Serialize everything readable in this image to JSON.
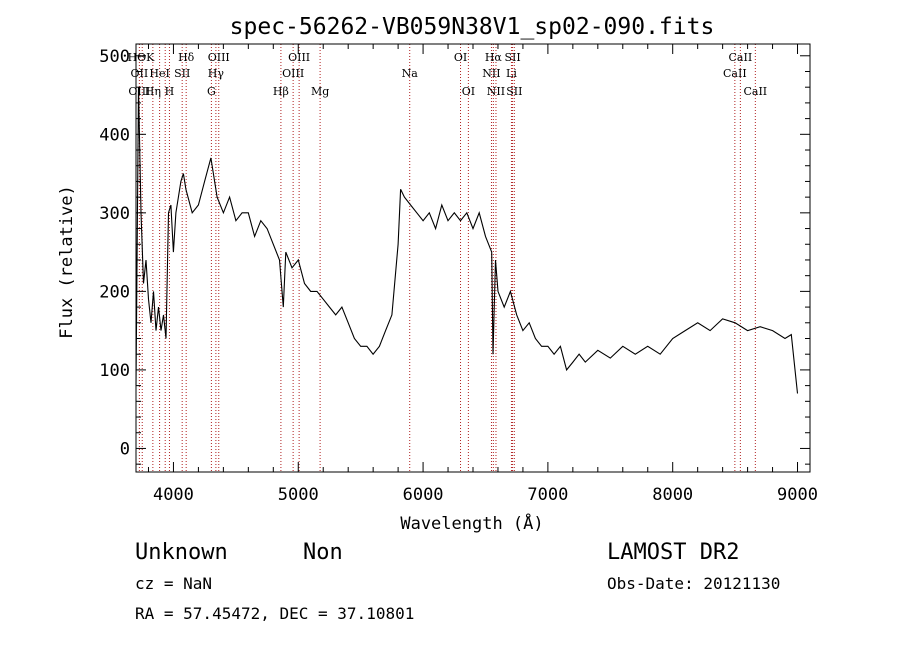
{
  "chart_data": {
    "type": "line",
    "title": "spec-56262-VB059N38V1_sp02-090.fits",
    "xlabel": "Wavelength (Å)",
    "ylabel": "Flux (relative)",
    "xlim": [
      3700,
      9100
    ],
    "ylim": [
      -30,
      515
    ],
    "x_ticks": [
      4000,
      5000,
      6000,
      7000,
      8000,
      9000
    ],
    "y_ticks": [
      0,
      100,
      200,
      300,
      400,
      500
    ],
    "grid": false,
    "series": [
      {
        "x": [
          3700,
          3720,
          3740,
          3760,
          3780,
          3800,
          3820,
          3840,
          3860,
          3880,
          3900,
          3920,
          3940,
          3960,
          3980,
          4000,
          4020,
          4040,
          4060,
          4080,
          4100,
          4150,
          4200,
          4250,
          4300,
          4350,
          4400,
          4450,
          4500,
          4550,
          4600,
          4650,
          4700,
          4750,
          4800,
          4850,
          4880,
          4900,
          4950,
          5000,
          5050,
          5100,
          5150,
          5200,
          5250,
          5300,
          5350,
          5400,
          5450,
          5500,
          5550,
          5600,
          5650,
          5700,
          5750,
          5800,
          5820,
          5850,
          5900,
          5950,
          6000,
          6050,
          6100,
          6150,
          6200,
          6250,
          6300,
          6350,
          6400,
          6450,
          6500,
          6550,
          6560,
          6580,
          6600,
          6650,
          6700,
          6750,
          6800,
          6850,
          6900,
          6950,
          7000,
          7050,
          7100,
          7150,
          7200,
          7250,
          7300,
          7400,
          7500,
          7600,
          7700,
          7800,
          7900,
          8000,
          8100,
          8200,
          8300,
          8400,
          8500,
          8600,
          8700,
          8800,
          8900,
          8950,
          9000
        ],
        "y": [
          80,
          460,
          300,
          210,
          240,
          190,
          160,
          200,
          150,
          180,
          150,
          170,
          140,
          300,
          310,
          250,
          300,
          320,
          340,
          350,
          330,
          300,
          310,
          340,
          370,
          320,
          300,
          320,
          290,
          300,
          300,
          270,
          290,
          280,
          260,
          240,
          180,
          250,
          230,
          240,
          210,
          200,
          200,
          190,
          180,
          170,
          180,
          160,
          140,
          130,
          130,
          120,
          130,
          150,
          170,
          260,
          330,
          320,
          310,
          300,
          290,
          300,
          280,
          310,
          290,
          300,
          290,
          300,
          280,
          300,
          270,
          250,
          120,
          240,
          200,
          180,
          200,
          170,
          150,
          160,
          140,
          130,
          130,
          120,
          130,
          100,
          110,
          120,
          110,
          125,
          115,
          130,
          120,
          130,
          120,
          140,
          150,
          160,
          150,
          165,
          160,
          150,
          155,
          150,
          140,
          145,
          70
        ]
      }
    ],
    "line_labels": [
      {
        "label": "HΘK",
        "x": 3740,
        "row": 1
      },
      {
        "label": "Hδ",
        "x": 4102,
        "row": 1
      },
      {
        "label": "OIII",
        "x": 4363,
        "row": 1
      },
      {
        "label": "OIII",
        "x": 5007,
        "row": 1
      },
      {
        "label": "OI",
        "x": 6300,
        "row": 1
      },
      {
        "label": "Hα",
        "x": 6563,
        "row": 1
      },
      {
        "label": "SII",
        "x": 6717,
        "row": 1
      },
      {
        "label": "CaII",
        "x": 8542,
        "row": 1
      },
      {
        "label": "OII",
        "x": 3727,
        "row": 2
      },
      {
        "label": "HeI",
        "x": 3889,
        "row": 2
      },
      {
        "label": "SII",
        "x": 4070,
        "row": 2
      },
      {
        "label": "Hγ",
        "x": 4340,
        "row": 2
      },
      {
        "label": "OIII",
        "x": 4959,
        "row": 2
      },
      {
        "label": "Na",
        "x": 5893,
        "row": 2
      },
      {
        "label": "NII",
        "x": 6548,
        "row": 2
      },
      {
        "label": "Li",
        "x": 6708,
        "row": 2
      },
      {
        "label": "CaII",
        "x": 8498,
        "row": 2
      },
      {
        "label": "OIII",
        "x": 3727,
        "row": 3
      },
      {
        "label": "Hη",
        "x": 3835,
        "row": 3
      },
      {
        "label": "H",
        "x": 3968,
        "row": 3
      },
      {
        "label": "G",
        "x": 4304,
        "row": 3
      },
      {
        "label": "Hβ",
        "x": 4861,
        "row": 3
      },
      {
        "label": "Mg",
        "x": 5175,
        "row": 3
      },
      {
        "label": "OI",
        "x": 6363,
        "row": 3
      },
      {
        "label": "NII",
        "x": 6584,
        "row": 3
      },
      {
        "label": "SII",
        "x": 6731,
        "row": 3
      },
      {
        "label": "CaII",
        "x": 8662,
        "row": 3
      }
    ],
    "line_positions": [
      3727,
      3750,
      3835,
      3889,
      3934,
      3968,
      4070,
      4102,
      4304,
      4340,
      4363,
      4861,
      4959,
      5007,
      5175,
      5893,
      6300,
      6363,
      6548,
      6563,
      6584,
      6708,
      6717,
      6731,
      8498,
      8542,
      8662
    ]
  },
  "info": {
    "class": "Unknown",
    "subclass": "Non",
    "survey": "LAMOST DR2",
    "cz": "cz = NaN",
    "obs_date": "Obs-Date: 20121130",
    "coords": "RA =  57.45472, DEC =  37.10801"
  },
  "colors": {
    "axis": "#000000",
    "spectrum": "#000000",
    "line_markers": "#b02020"
  }
}
